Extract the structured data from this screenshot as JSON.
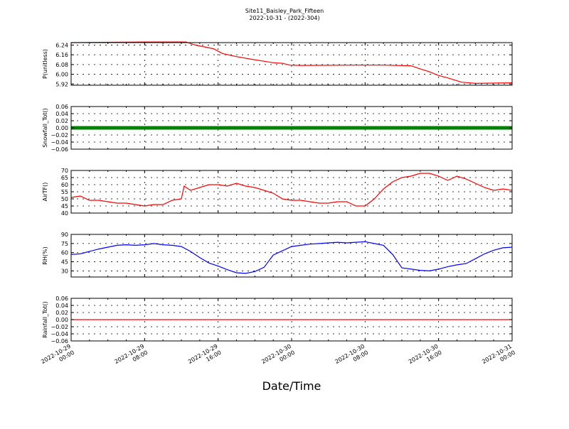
{
  "figure": {
    "title": "Site11_Baisley_Park_Fifteen",
    "subtitle": "2022-10-31 - (2022-304)",
    "xlabel": "Date/Time"
  },
  "chart_data": [
    {
      "type": "line",
      "ylabel": "P(unitless)",
      "ylim": [
        5.91,
        6.26
      ],
      "yticks": [
        5.92,
        6.0,
        6.08,
        6.16,
        6.24
      ],
      "ytick_labels": [
        "5.92",
        "6.00",
        "6.08",
        "6.16",
        "6.24"
      ],
      "color": "#ff0000",
      "grid": true,
      "xlim": [
        0,
        48
      ],
      "x": [
        0,
        8,
        12.5,
        13.5,
        14.5,
        15.5,
        16.5,
        18,
        19.5,
        22,
        23,
        23.8,
        25,
        31,
        34,
        37,
        38,
        39,
        40,
        41,
        42.5,
        44,
        48
      ],
      "y": [
        6.26,
        6.265,
        6.265,
        6.24,
        6.225,
        6.21,
        6.17,
        6.145,
        6.125,
        6.095,
        6.09,
        6.075,
        6.073,
        6.075,
        6.075,
        6.07,
        6.045,
        6.02,
        5.99,
        5.97,
        5.935,
        5.925,
        5.93
      ]
    },
    {
      "type": "scatter",
      "ylabel": "Snowfall_Tot()",
      "ylim": [
        -0.06,
        0.06
      ],
      "yticks": [
        -0.06,
        -0.04,
        -0.02,
        0.0,
        0.02,
        0.04,
        0.06
      ],
      "ytick_labels": [
        "−0.06",
        "−0.04",
        "−0.02",
        "0.00",
        "0.02",
        "0.04",
        "0.06"
      ],
      "color": "#008000",
      "grid": true,
      "xlim": [
        0,
        48
      ],
      "x": [
        0,
        48
      ],
      "y": [
        0.0,
        0.0
      ]
    },
    {
      "type": "line",
      "ylabel": "AirTF()",
      "ylim": [
        40,
        70
      ],
      "yticks": [
        40,
        45,
        50,
        55,
        60,
        65,
        70
      ],
      "ytick_labels": [
        "40",
        "45",
        "50",
        "55",
        "60",
        "65",
        "70"
      ],
      "color": "#ff0000",
      "grid": true,
      "xlim": [
        0,
        48
      ],
      "x": [
        0,
        1,
        2,
        3,
        4,
        5,
        6,
        7,
        8,
        9,
        10,
        11,
        12,
        12.3,
        13,
        14,
        15,
        16,
        17,
        18,
        19,
        20,
        21,
        22,
        23,
        24,
        25,
        26,
        27,
        28,
        29,
        30,
        31,
        32,
        33,
        34,
        35,
        36,
        37,
        38,
        39,
        40,
        41,
        42,
        43,
        44,
        45,
        46,
        47,
        48
      ],
      "y": [
        51,
        52,
        49,
        49,
        48,
        47,
        47,
        46,
        45,
        46,
        46,
        49,
        50,
        59,
        56,
        58,
        60,
        60,
        59,
        61,
        59,
        58,
        56,
        54,
        50,
        49,
        49,
        48,
        47,
        47,
        48,
        48,
        45,
        45,
        50,
        57,
        62,
        65,
        66,
        68,
        68,
        66,
        63,
        66,
        64,
        61,
        58,
        56,
        57,
        56
      ]
    },
    {
      "type": "line",
      "ylabel": "RH(%)",
      "ylim": [
        20,
        90
      ],
      "yticks": [
        30,
        45,
        60,
        75,
        90
      ],
      "ytick_labels": [
        "30",
        "45",
        "60",
        "75",
        "90"
      ],
      "color": "#0000ff",
      "grid": true,
      "xlim": [
        0,
        48
      ],
      "x": [
        0,
        1,
        2,
        3,
        4,
        5,
        6,
        7,
        8,
        9,
        10,
        11,
        12,
        13,
        14,
        15,
        16,
        17,
        18,
        19,
        20,
        21,
        22,
        23,
        24,
        25,
        26,
        27,
        28,
        29,
        30,
        31,
        32,
        33,
        34,
        35,
        36,
        37,
        38,
        39,
        40,
        41,
        42,
        43,
        44,
        45,
        46,
        47,
        48
      ],
      "y": [
        57,
        58,
        62,
        66,
        69,
        72,
        73,
        72,
        73,
        75,
        73,
        72,
        70,
        62,
        52,
        43,
        38,
        32,
        27,
        26,
        29,
        36,
        56,
        63,
        70,
        72,
        74,
        75,
        76,
        77,
        76,
        77,
        78,
        75,
        72,
        57,
        35,
        33,
        31,
        30,
        33,
        37,
        40,
        42,
        50,
        58,
        64,
        68,
        69
      ]
    },
    {
      "type": "line",
      "ylabel": "Rainfall_Tot()",
      "ylim": [
        -0.06,
        0.06
      ],
      "yticks": [
        -0.06,
        -0.04,
        -0.02,
        0.0,
        0.02,
        0.04,
        0.06
      ],
      "ytick_labels": [
        "−0.06",
        "−0.04",
        "−0.02",
        "0.00",
        "0.02",
        "0.04",
        "0.06"
      ],
      "color": "#ff0000",
      "grid": true,
      "xlim": [
        0,
        48
      ],
      "x": [
        0,
        48
      ],
      "y": [
        0.0,
        0.0
      ]
    }
  ],
  "x_axis": {
    "ticks": [
      0,
      8,
      16,
      24,
      32,
      40,
      48
    ],
    "tick_labels": [
      [
        "2022-10-29",
        "00:00"
      ],
      [
        "2022-10-29",
        "08:00"
      ],
      [
        "2022-10-29",
        "16:00"
      ],
      [
        "2022-10-30",
        "00:00"
      ],
      [
        "2022-10-30",
        "08:00"
      ],
      [
        "2022-10-30",
        "16:00"
      ],
      [
        "2022-10-31",
        "00:00"
      ]
    ]
  }
}
